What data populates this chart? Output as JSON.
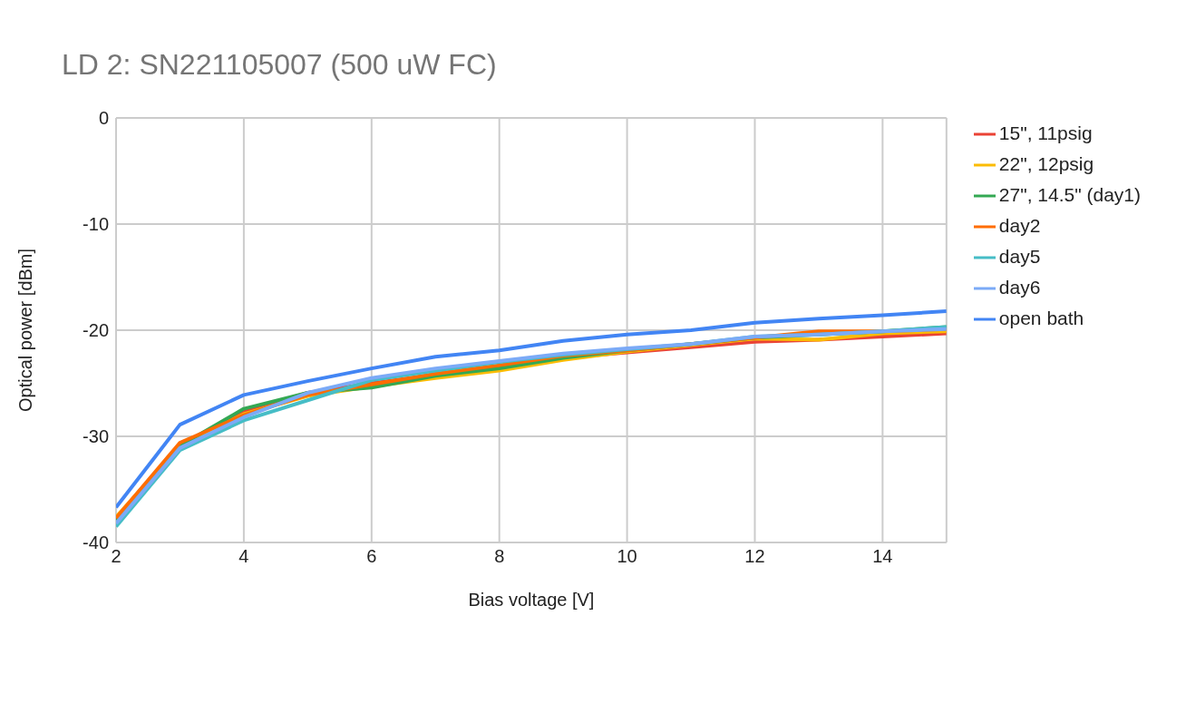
{
  "chart_data": {
    "type": "line",
    "title": "LD 2: SN221105007 (500 uW FC)",
    "xlabel": "Bias voltage [V]",
    "ylabel": "Optical power [dBm]",
    "x": [
      2,
      3,
      4,
      5,
      6,
      7,
      8,
      9,
      10,
      11,
      12,
      13,
      14,
      15
    ],
    "xlim": [
      2,
      15
    ],
    "xticks": [
      2,
      4,
      6,
      8,
      10,
      12,
      14
    ],
    "ylim": [
      -40,
      0
    ],
    "yticks": [
      -40,
      -30,
      -20,
      -10,
      0
    ],
    "grid": true,
    "legend": "right",
    "marker": "none",
    "line_style": "solid",
    "series": [
      {
        "name": "open bath",
        "color": "#4285f4",
        "values": [
          -36.7,
          -28.9,
          -26.1,
          -24.8,
          -23.6,
          -22.5,
          -21.9,
          -21.0,
          -20.4,
          -20.0,
          -19.3,
          -18.9,
          -18.6,
          -18.2
        ]
      },
      {
        "name": "15\", 11psig",
        "color": "#ea4335",
        "values": [
          -37.8,
          -30.8,
          -27.7,
          -25.9,
          -25.0,
          -24.2,
          -23.4,
          -22.6,
          -22.1,
          -21.6,
          -21.1,
          -20.9,
          -20.6,
          -20.3
        ]
      },
      {
        "name": "22\", 12psig",
        "color": "#fbbc04",
        "values": [
          -37.6,
          -30.9,
          -27.9,
          -26.2,
          -25.3,
          -24.5,
          -23.8,
          -22.8,
          -22.0,
          -21.4,
          -20.8,
          -20.9,
          -20.3,
          -20.1
        ]
      },
      {
        "name": "27\", 14.5\" (day1)",
        "color": "#34a853",
        "values": [
          -37.9,
          -30.9,
          -27.4,
          -25.9,
          -25.4,
          -24.3,
          -23.6,
          -22.6,
          -21.9,
          -21.3,
          -20.7,
          -20.4,
          -20.1,
          -19.7
        ]
      },
      {
        "name": "day2",
        "color": "#ff6d01",
        "values": [
          -37.7,
          -30.6,
          -28.0,
          -26.1,
          -25.1,
          -24.1,
          -23.3,
          -22.4,
          -21.9,
          -21.3,
          -20.7,
          -20.1,
          -20.1,
          -19.9
        ]
      },
      {
        "name": "day5",
        "color": "#46bdc6",
        "values": [
          -38.5,
          -31.3,
          -28.5,
          -26.6,
          -24.7,
          -23.8,
          -23.0,
          -22.3,
          -21.8,
          -21.3,
          -20.6,
          -20.4,
          -20.1,
          -19.7
        ]
      },
      {
        "name": "day6",
        "color": "#7baaf7",
        "values": [
          -38.2,
          -31.1,
          -28.2,
          -25.9,
          -24.5,
          -23.6,
          -22.9,
          -22.2,
          -21.7,
          -21.3,
          -20.6,
          -20.4,
          -20.1,
          -19.9
        ]
      }
    ]
  }
}
